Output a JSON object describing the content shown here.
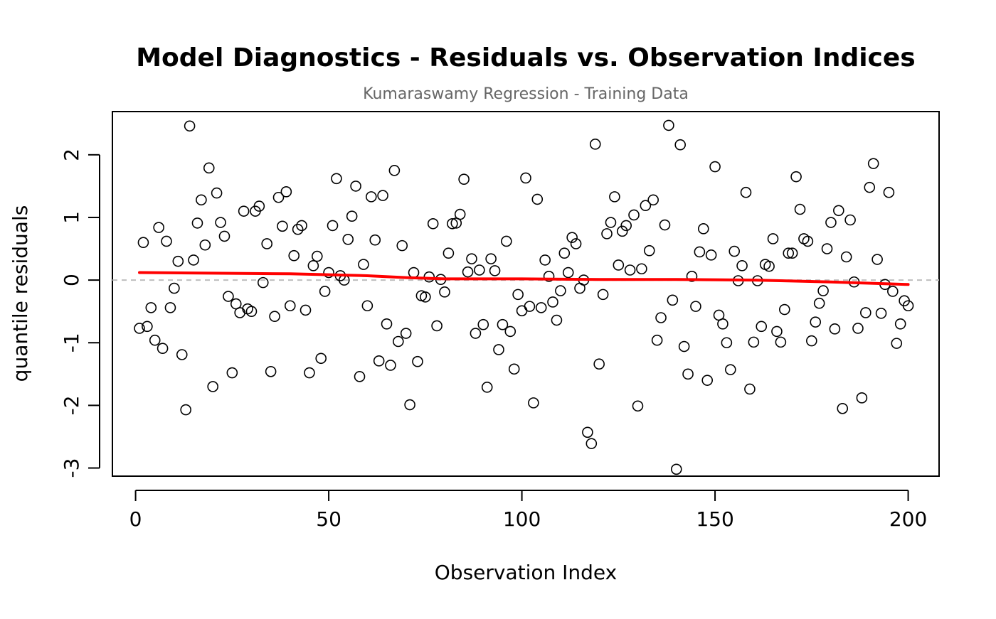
{
  "chart_data": {
    "type": "scatter",
    "title": "Model Diagnostics - Residuals vs. Observation Indices",
    "subtitle": "Kumaraswamy Regression - Training Data",
    "xlabel": "Observation Index",
    "ylabel": "quantile residuals",
    "xlim": [
      -6,
      208
    ],
    "ylim": [
      -3.13,
      2.69
    ],
    "x_ticks": [
      "0",
      "50",
      "100",
      "150",
      "200"
    ],
    "y_ticks": [
      "-3",
      "-2",
      "-1",
      "0",
      "1",
      "2"
    ],
    "grid": false,
    "reference_line": 0,
    "colors": {
      "points": "#000000",
      "smooth": "#ff0000",
      "reference": "#bebebe"
    },
    "points": [
      [
        1,
        -0.77
      ],
      [
        2,
        0.6
      ],
      [
        3,
        -0.74
      ],
      [
        4,
        -0.44
      ],
      [
        5,
        -0.96
      ],
      [
        6,
        0.84
      ],
      [
        7,
        -1.09
      ],
      [
        8,
        0.62
      ],
      [
        9,
        -0.44
      ],
      [
        10,
        -0.13
      ],
      [
        11,
        0.3
      ],
      [
        12,
        -1.19
      ],
      [
        13,
        -2.07
      ],
      [
        14,
        2.46
      ],
      [
        15,
        0.32
      ],
      [
        16,
        0.91
      ],
      [
        17,
        1.28
      ],
      [
        18,
        0.56
      ],
      [
        19,
        1.79
      ],
      [
        20,
        -1.7
      ],
      [
        21,
        1.39
      ],
      [
        22,
        0.92
      ],
      [
        23,
        0.7
      ],
      [
        24,
        -0.26
      ],
      [
        25,
        -1.48
      ],
      [
        26,
        -0.38
      ],
      [
        27,
        -0.52
      ],
      [
        28,
        1.1
      ],
      [
        29,
        -0.46
      ],
      [
        30,
        -0.5
      ],
      [
        31,
        1.1
      ],
      [
        32,
        1.18
      ],
      [
        33,
        -0.04
      ],
      [
        34,
        0.58
      ],
      [
        35,
        -1.46
      ],
      [
        36,
        -0.58
      ],
      [
        37,
        1.32
      ],
      [
        38,
        0.86
      ],
      [
        39,
        1.41
      ],
      [
        40,
        -0.41
      ],
      [
        41,
        0.39
      ],
      [
        42,
        0.81
      ],
      [
        43,
        0.87
      ],
      [
        44,
        -0.48
      ],
      [
        45,
        -1.48
      ],
      [
        46,
        0.23
      ],
      [
        47,
        0.38
      ],
      [
        48,
        -1.25
      ],
      [
        49,
        -0.18
      ],
      [
        50,
        0.12
      ],
      [
        51,
        0.87
      ],
      [
        52,
        1.62
      ],
      [
        53,
        0.07
      ],
      [
        54,
        0.0
      ],
      [
        55,
        0.65
      ],
      [
        56,
        1.02
      ],
      [
        57,
        1.5
      ],
      [
        58,
        -1.54
      ],
      [
        59,
        0.25
      ],
      [
        60,
        -0.41
      ],
      [
        61,
        1.33
      ],
      [
        62,
        0.64
      ],
      [
        63,
        -1.29
      ],
      [
        64,
        1.35
      ],
      [
        65,
        -0.7
      ],
      [
        66,
        -1.36
      ],
      [
        67,
        1.75
      ],
      [
        68,
        -0.98
      ],
      [
        69,
        0.55
      ],
      [
        70,
        -0.85
      ],
      [
        71,
        -1.99
      ],
      [
        72,
        0.12
      ],
      [
        73,
        -1.3
      ],
      [
        74,
        -0.25
      ],
      [
        75,
        -0.27
      ],
      [
        76,
        0.05
      ],
      [
        77,
        0.9
      ],
      [
        78,
        -0.73
      ],
      [
        79,
        0.01
      ],
      [
        80,
        -0.19
      ],
      [
        81,
        0.43
      ],
      [
        82,
        0.9
      ],
      [
        83,
        0.91
      ],
      [
        84,
        1.05
      ],
      [
        85,
        1.61
      ],
      [
        86,
        0.13
      ],
      [
        87,
        0.34
      ],
      [
        88,
        -0.85
      ],
      [
        89,
        0.16
      ],
      [
        90,
        -0.71
      ],
      [
        91,
        -1.71
      ],
      [
        92,
        0.34
      ],
      [
        93,
        0.15
      ],
      [
        94,
        -1.11
      ],
      [
        95,
        -0.71
      ],
      [
        96,
        0.62
      ],
      [
        97,
        -0.82
      ],
      [
        98,
        -1.42
      ],
      [
        99,
        -0.23
      ],
      [
        100,
        -0.49
      ],
      [
        101,
        1.63
      ],
      [
        102,
        -0.42
      ],
      [
        103,
        -1.96
      ],
      [
        104,
        1.29
      ],
      [
        105,
        -0.44
      ],
      [
        106,
        0.32
      ],
      [
        107,
        0.06
      ],
      [
        108,
        -0.35
      ],
      [
        109,
        -0.64
      ],
      [
        110,
        -0.17
      ],
      [
        111,
        0.43
      ],
      [
        112,
        0.12
      ],
      [
        113,
        0.68
      ],
      [
        114,
        0.58
      ],
      [
        115,
        -0.13
      ],
      [
        116,
        0.0
      ],
      [
        117,
        -2.43
      ],
      [
        118,
        -2.61
      ],
      [
        119,
        2.17
      ],
      [
        120,
        -1.34
      ],
      [
        121,
        -0.23
      ],
      [
        122,
        0.74
      ],
      [
        123,
        0.92
      ],
      [
        124,
        1.33
      ],
      [
        125,
        0.24
      ],
      [
        126,
        0.78
      ],
      [
        127,
        0.87
      ],
      [
        128,
        0.16
      ],
      [
        129,
        1.04
      ],
      [
        130,
        -2.01
      ],
      [
        131,
        0.18
      ],
      [
        132,
        1.19
      ],
      [
        133,
        0.47
      ],
      [
        134,
        1.28
      ],
      [
        135,
        -0.96
      ],
      [
        136,
        -0.6
      ],
      [
        137,
        0.88
      ],
      [
        138,
        2.47
      ],
      [
        139,
        -0.32
      ],
      [
        140,
        -3.02
      ],
      [
        141,
        2.16
      ],
      [
        142,
        -1.06
      ],
      [
        143,
        -1.5
      ],
      [
        144,
        0.06
      ],
      [
        145,
        -0.42
      ],
      [
        146,
        0.45
      ],
      [
        147,
        0.82
      ],
      [
        148,
        -1.6
      ],
      [
        149,
        0.4
      ],
      [
        150,
        1.81
      ],
      [
        151,
        -0.56
      ],
      [
        152,
        -0.7
      ],
      [
        153,
        -1.0
      ],
      [
        154,
        -1.43
      ],
      [
        155,
        0.46
      ],
      [
        156,
        -0.01
      ],
      [
        157,
        0.23
      ],
      [
        158,
        1.4
      ],
      [
        159,
        -1.74
      ],
      [
        160,
        -0.99
      ],
      [
        161,
        -0.01
      ],
      [
        162,
        -0.74
      ],
      [
        163,
        0.25
      ],
      [
        164,
        0.22
      ],
      [
        165,
        0.66
      ],
      [
        166,
        -0.82
      ],
      [
        167,
        -0.99
      ],
      [
        168,
        -0.47
      ],
      [
        169,
        0.43
      ],
      [
        170,
        0.43
      ],
      [
        171,
        1.65
      ],
      [
        172,
        1.13
      ],
      [
        173,
        0.66
      ],
      [
        174,
        0.62
      ],
      [
        175,
        -0.97
      ],
      [
        176,
        -0.67
      ],
      [
        177,
        -0.37
      ],
      [
        178,
        -0.17
      ],
      [
        179,
        0.5
      ],
      [
        180,
        0.92
      ],
      [
        181,
        -0.78
      ],
      [
        182,
        1.11
      ],
      [
        183,
        -2.05
      ],
      [
        184,
        0.37
      ],
      [
        185,
        0.96
      ],
      [
        186,
        -0.03
      ],
      [
        187,
        -0.77
      ],
      [
        188,
        -1.88
      ],
      [
        189,
        -0.52
      ],
      [
        190,
        1.48
      ],
      [
        191,
        1.86
      ],
      [
        192,
        0.33
      ],
      [
        193,
        -0.53
      ],
      [
        194,
        -0.07
      ],
      [
        195,
        1.4
      ],
      [
        196,
        -0.18
      ],
      [
        197,
        -1.01
      ],
      [
        198,
        -0.7
      ],
      [
        199,
        -0.33
      ],
      [
        200,
        -0.41
      ]
    ],
    "smooth": [
      [
        1,
        0.12
      ],
      [
        20,
        0.11
      ],
      [
        40,
        0.1
      ],
      [
        60,
        0.07
      ],
      [
        70,
        0.04
      ],
      [
        80,
        0.02
      ],
      [
        100,
        0.02
      ],
      [
        120,
        0.01
      ],
      [
        140,
        0.01
      ],
      [
        160,
        0.0
      ],
      [
        180,
        -0.03
      ],
      [
        200,
        -0.07
      ]
    ]
  }
}
